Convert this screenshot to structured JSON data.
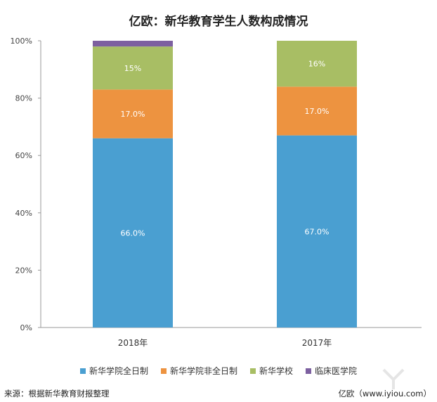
{
  "title": "亿欧：新华教育学生人数构成情况",
  "chart_data": {
    "type": "bar",
    "stacked": true,
    "title": "亿欧：新华教育学生人数构成情况",
    "categories": [
      "2018年",
      "2017年"
    ],
    "ylim": [
      0,
      100
    ],
    "yticks": [
      "0%",
      "20%",
      "40%",
      "60%",
      "80%",
      "100%"
    ],
    "grid": false,
    "legend_position": "bottom",
    "series": [
      {
        "name": "新华学院全日制",
        "color": "#4a9fd1",
        "values": [
          66.0,
          67.0
        ],
        "labels": [
          "66.0%",
          "67.0%"
        ]
      },
      {
        "name": "新华学院非全日制",
        "color": "#ed9340",
        "values": [
          17.0,
          17.0
        ],
        "labels": [
          "17.0%",
          "17.0%"
        ]
      },
      {
        "name": "新华学校",
        "color": "#a8be64",
        "values": [
          15,
          16
        ],
        "labels": [
          "15%",
          "16%"
        ]
      },
      {
        "name": "临床医学院",
        "color": "#7d60a0",
        "values": [
          2,
          0
        ],
        "labels": [
          "",
          ""
        ]
      }
    ]
  },
  "source": "来源：根据新华教育财报整理",
  "credit": "亿欧（www.iyiou.com）"
}
